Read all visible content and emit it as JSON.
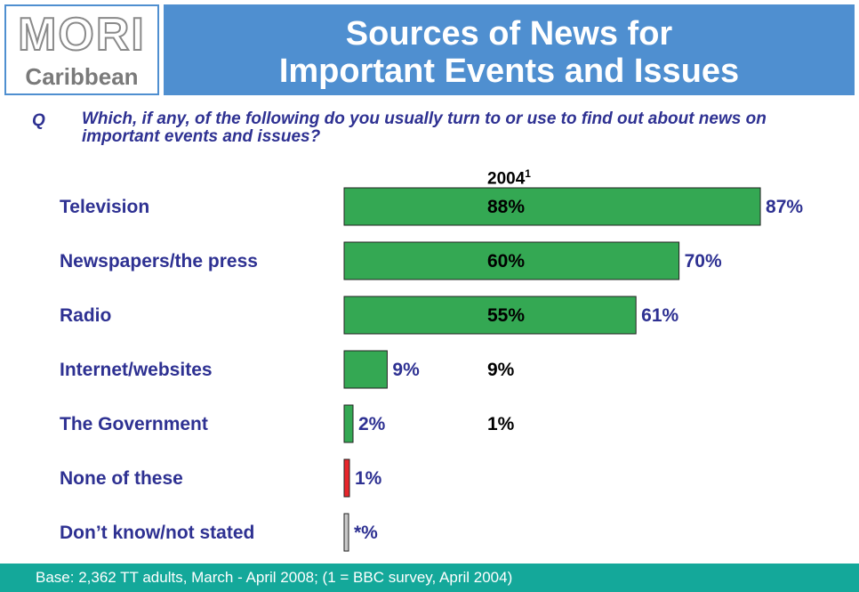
{
  "logo": {
    "word": "MORI",
    "sub": "Caribbean"
  },
  "title": {
    "line1": "Sources of News for",
    "line2": "Important Events and Issues"
  },
  "question": {
    "letter": "Q",
    "text": "Which, if any, of the following do you usually turn to or use to find out about news on important events and issues?"
  },
  "chart_data": {
    "type": "bar",
    "orientation": "horizontal",
    "categories": [
      "Television",
      "Newspapers/the press",
      "Radio",
      "Internet/websites",
      "The Government",
      "None of these",
      "Don’t know/not stated"
    ],
    "series": [
      {
        "values": [
          87,
          70,
          61,
          9,
          2,
          1,
          0
        ],
        "labels": [
          "87%",
          "70%",
          "61%",
          "9%",
          "2%",
          "1%",
          "*%"
        ],
        "colors": [
          "#34a853",
          "#34a853",
          "#34a853",
          "#34a853",
          "#34a853",
          "#e8262b",
          "#c8c8c8"
        ]
      },
      {
        "name_main": "2004",
        "name_sup": "1",
        "labels": [
          "88%",
          "60%",
          "55%",
          "9%",
          "1%",
          "",
          ""
        ]
      }
    ],
    "xlim": [
      0,
      100
    ],
    "grid": false,
    "legend": "none"
  },
  "footer": {
    "text": "Base: 2,362 TT adults, March - April 2008; (1 = BBC survey, April 2004)"
  },
  "colors": {
    "title_bg": "#4f8fd0",
    "footer_bg": "#14a89a",
    "text": "#2e3192",
    "bar": "#34a853"
  }
}
